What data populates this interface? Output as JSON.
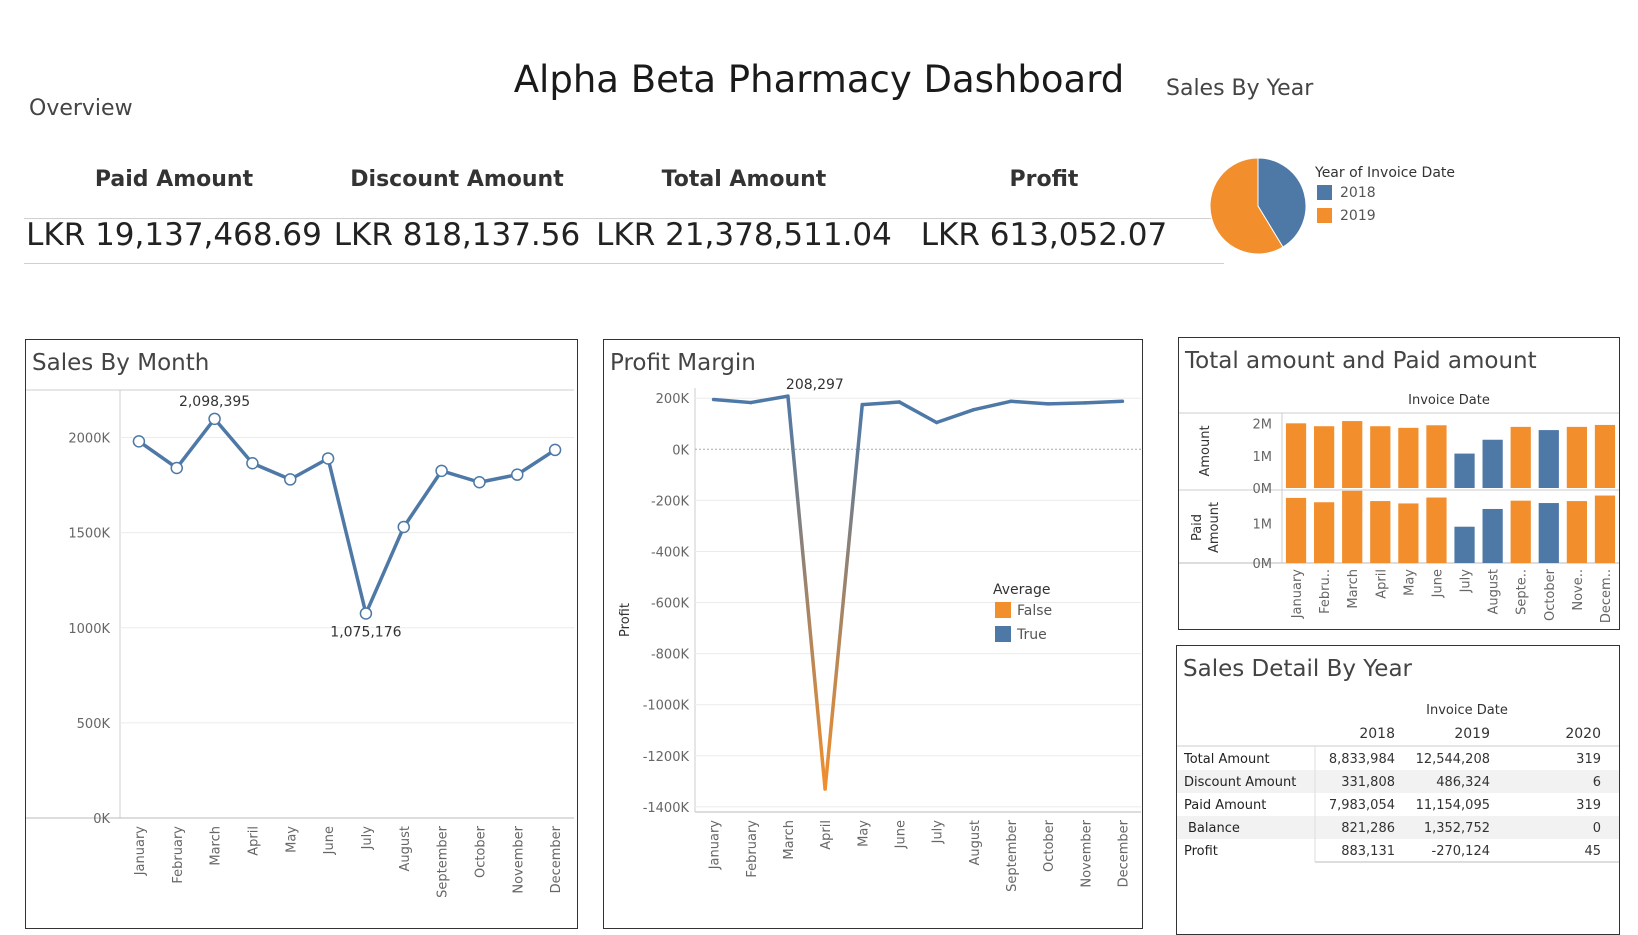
{
  "title": "Alpha Beta Pharmacy Dashboard",
  "overview": {
    "title": "Overview",
    "kpis": [
      {
        "label": "Paid Amount",
        "value": "LKR 19,137,468.69"
      },
      {
        "label": "Discount Amount",
        "value": "LKR 818,137.56"
      },
      {
        "label": "Total Amount",
        "value": "LKR 21,378,511.04"
      },
      {
        "label": "Profit",
        "value": "LKR 613,052.07"
      }
    ]
  },
  "colors": {
    "blue": "#4e79a7",
    "orange": "#f28e2b"
  },
  "chart_data": [
    {
      "id": "sales_by_year",
      "type": "pie",
      "title": "Sales By Year",
      "legend_title": "Year of Invoice Date",
      "legend_position": "right",
      "slices": [
        {
          "label": "2018",
          "value": 8833984,
          "color": "#4e79a7"
        },
        {
          "label": "2019",
          "value": 12544208,
          "color": "#f28e2b"
        }
      ]
    },
    {
      "id": "sales_by_month",
      "type": "line",
      "title": "Sales By Month",
      "categories": [
        "January",
        "February",
        "March",
        "April",
        "May",
        "June",
        "July",
        "August",
        "September",
        "October",
        "November",
        "December"
      ],
      "values": [
        1980000,
        1840000,
        2098395,
        1865000,
        1780000,
        1890000,
        1075176,
        1530000,
        1825000,
        1765000,
        1805000,
        1935000
      ],
      "annotations": [
        {
          "index": 2,
          "text": "2,098,395"
        },
        {
          "index": 6,
          "text": "1,075,176"
        }
      ],
      "ylim": [
        0,
        2250000
      ],
      "yticks": [
        0,
        500000,
        1000000,
        1500000,
        2000000
      ],
      "ytick_labels": [
        "0K",
        "500K",
        "1000K",
        "1500K",
        "2000K"
      ],
      "grid": true,
      "color": "#4e79a7"
    },
    {
      "id": "profit_margin",
      "type": "line",
      "title": "Profit Margin",
      "ylabel": "Profit",
      "categories": [
        "January",
        "February",
        "March",
        "April",
        "May",
        "June",
        "July",
        "August",
        "September",
        "October",
        "November",
        "December"
      ],
      "values": [
        195000,
        183000,
        208297,
        -1330000,
        175000,
        185000,
        105000,
        155000,
        188000,
        178000,
        182000,
        188000
      ],
      "above_average": [
        true,
        true,
        true,
        false,
        true,
        true,
        true,
        true,
        true,
        true,
        true,
        true
      ],
      "annotations": [
        {
          "index": 2,
          "text": "208,297"
        }
      ],
      "ylim": [
        -1420000,
        240000
      ],
      "yticks": [
        200000,
        0,
        -200000,
        -400000,
        -600000,
        -800000,
        -1000000,
        -1200000,
        -1400000
      ],
      "ytick_labels": [
        "200K",
        "0K",
        "-200K",
        "-400K",
        "-600K",
        "-800K",
        "-1000K",
        "-1200K",
        "-1400K"
      ],
      "legend": {
        "title": "Average",
        "items": [
          {
            "label": "False",
            "color": "#f28e2b"
          },
          {
            "label": "True",
            "color": "#4e79a7"
          }
        ]
      },
      "grid": true
    },
    {
      "id": "total_and_paid_amount",
      "type": "bar",
      "title": "Total amount and Paid amount",
      "column_header": "Invoice Date",
      "categories": [
        "January",
        "Febru..",
        "March",
        "April",
        "May",
        "June",
        "July",
        "August",
        "Septe..",
        "October",
        "Nove..",
        "Decem.."
      ],
      "highlight": [
        false,
        false,
        false,
        false,
        false,
        false,
        true,
        true,
        false,
        true,
        false,
        false
      ],
      "series": [
        {
          "name": "Amount",
          "values": [
            2010000,
            1920000,
            2080000,
            1920000,
            1870000,
            1950000,
            1070000,
            1500000,
            1900000,
            1800000,
            1900000,
            1960000
          ],
          "ylim": [
            0,
            2300000
          ],
          "yticks": [
            0,
            1000000,
            2000000
          ],
          "ytick_labels": [
            "0M",
            "1M",
            "2M"
          ]
        },
        {
          "name": "Paid Amount",
          "values": [
            1650000,
            1540000,
            1830000,
            1570000,
            1510000,
            1660000,
            920000,
            1370000,
            1580000,
            1520000,
            1570000,
            1710000
          ],
          "ylim": [
            0,
            1800000
          ],
          "yticks": [
            0,
            1000000
          ],
          "ytick_labels": [
            "0M",
            "1M"
          ]
        }
      ]
    },
    {
      "id": "sales_detail_by_year",
      "type": "table",
      "title": "Sales Detail By Year",
      "column_header": "Invoice Date",
      "columns": [
        "2018",
        "2019",
        "2020"
      ],
      "rows": [
        {
          "label": "Total Amount",
          "values": [
            "8,833,984",
            "12,544,208",
            "319"
          ]
        },
        {
          "label": "Discount Amount",
          "values": [
            "331,808",
            "486,324",
            "6"
          ]
        },
        {
          "label": "Paid Amount",
          "values": [
            "7,983,054",
            "11,154,095",
            "319"
          ]
        },
        {
          "label": "Balance",
          "values": [
            "821,286",
            "1,352,752",
            "0"
          ]
        },
        {
          "label": "Profit",
          "values": [
            "883,131",
            "-270,124",
            "45"
          ]
        }
      ]
    }
  ]
}
